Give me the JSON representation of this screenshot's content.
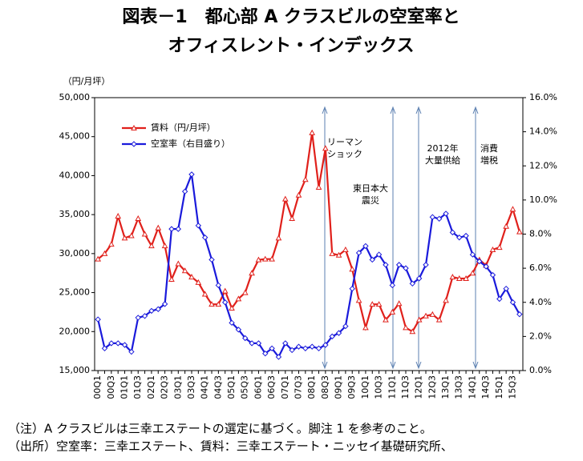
{
  "chart_data": {
    "type": "line",
    "title_lines": [
      "図表－1　都心部 A クラスビルの空室率と",
      "オフィスレント・インデックス"
    ],
    "y_unit_label": "（円/月坪）",
    "categories": [
      "00Q1",
      null,
      "00Q3",
      null,
      "01Q1",
      null,
      "01Q3",
      null,
      "02Q1",
      null,
      "02Q3",
      null,
      "03Q1",
      null,
      "03Q3",
      null,
      "04Q1",
      null,
      "04Q3",
      null,
      "05Q1",
      null,
      "05Q3",
      null,
      "06Q1",
      null,
      "06Q3",
      null,
      "07Q1",
      null,
      "07Q3",
      null,
      "08Q1",
      null,
      "08Q3",
      null,
      "09Q1",
      null,
      "09Q3",
      null,
      "10Q1",
      null,
      "10Q3",
      null,
      "11Q1",
      null,
      "11Q3",
      null,
      "12Q1",
      null,
      "12Q3",
      null,
      "13Q1",
      null,
      "13Q3",
      null,
      "14Q1",
      null,
      "14Q3",
      null,
      "15Q1",
      null,
      "15Q3",
      null
    ],
    "series": [
      {
        "name": "賃料（円/月坪）",
        "color": "#e0201b",
        "marker": "triangle",
        "values": [
          29300,
          30000,
          31200,
          34800,
          32000,
          32300,
          34500,
          32500,
          31000,
          33300,
          31000,
          26700,
          28700,
          27800,
          27000,
          26300,
          24800,
          23500,
          23500,
          25200,
          23000,
          24200,
          25000,
          27500,
          29200,
          29300,
          29300,
          32000,
          37000,
          34500,
          37500,
          39500,
          45500,
          38500,
          43500,
          30000,
          29800,
          30500,
          28000,
          24000,
          20500,
          23500,
          23500,
          21500,
          22500,
          23600,
          20500,
          20000,
          21500,
          22000,
          22200,
          21500,
          24000,
          27000,
          26800,
          26800,
          27500,
          29200,
          28500,
          30500,
          30800,
          33500,
          35700,
          32800
        ]
      },
      {
        "name": "空室率（右目盛り）",
        "color": "#1a1adb",
        "marker": "diamond",
        "axis": "y2",
        "values": [
          3.0,
          1.3,
          1.6,
          1.6,
          1.5,
          1.1,
          3.1,
          3.2,
          3.5,
          3.6,
          3.9,
          8.3,
          8.3,
          10.5,
          11.5,
          8.5,
          7.8,
          6.5,
          5.0,
          4.0,
          2.8,
          2.4,
          1.9,
          1.6,
          1.6,
          1.0,
          1.3,
          0.8,
          1.6,
          1.2,
          1.4,
          1.3,
          1.4,
          1.3,
          1.5,
          2.0,
          2.2,
          2.6,
          4.8,
          6.9,
          7.3,
          6.5,
          6.8,
          6.2,
          5.0,
          6.2,
          6.0,
          5.1,
          5.4,
          6.2,
          9.0,
          8.9,
          9.2,
          8.1,
          7.8,
          7.9,
          6.8,
          6.4,
          6.1,
          5.6,
          4.2,
          4.8,
          4.0,
          3.3
        ]
      }
    ],
    "ylim": [
      15000,
      50000
    ],
    "yticks": [
      {
        "value": 15000,
        "label": "15,000"
      },
      {
        "value": 20000,
        "label": "20,000"
      },
      {
        "value": 25000,
        "label": "25,000"
      },
      {
        "value": 30000,
        "label": "30,000"
      },
      {
        "value": 35000,
        "label": "35,000"
      },
      {
        "value": 40000,
        "label": "40,000"
      },
      {
        "value": 45000,
        "label": "45,000"
      },
      {
        "value": 50000,
        "label": "50,000"
      }
    ],
    "y2lim": [
      0,
      16
    ],
    "y2ticks": [
      {
        "value": 0,
        "label": "0.0%"
      },
      {
        "value": 2,
        "label": "2.0%"
      },
      {
        "value": 4,
        "label": "4.0%"
      },
      {
        "value": 6,
        "label": "6.0%"
      },
      {
        "value": 8,
        "label": "8.0%"
      },
      {
        "value": 10,
        "label": "10.0%"
      },
      {
        "value": 12,
        "label": "12.0%"
      },
      {
        "value": 14,
        "label": "14.0%"
      },
      {
        "value": 16,
        "label": "16.0%"
      }
    ],
    "annotations": [
      {
        "lines": [
          "リーマン",
          "ショック"
        ]
      },
      {
        "lines": [
          "東日本大",
          "震災"
        ]
      },
      {
        "lines": [
          "2012年",
          "大量供給"
        ]
      },
      {
        "lines": [
          "消費",
          "増税"
        ]
      }
    ],
    "notes": [
      "（注）A クラスビルは三幸エステートの選定に基づく。脚注 1 を参考のこと。",
      "（出所）空室率：三幸エステート、賃料：三幸エステート・ニッセイ基礎研究所、"
    ]
  }
}
